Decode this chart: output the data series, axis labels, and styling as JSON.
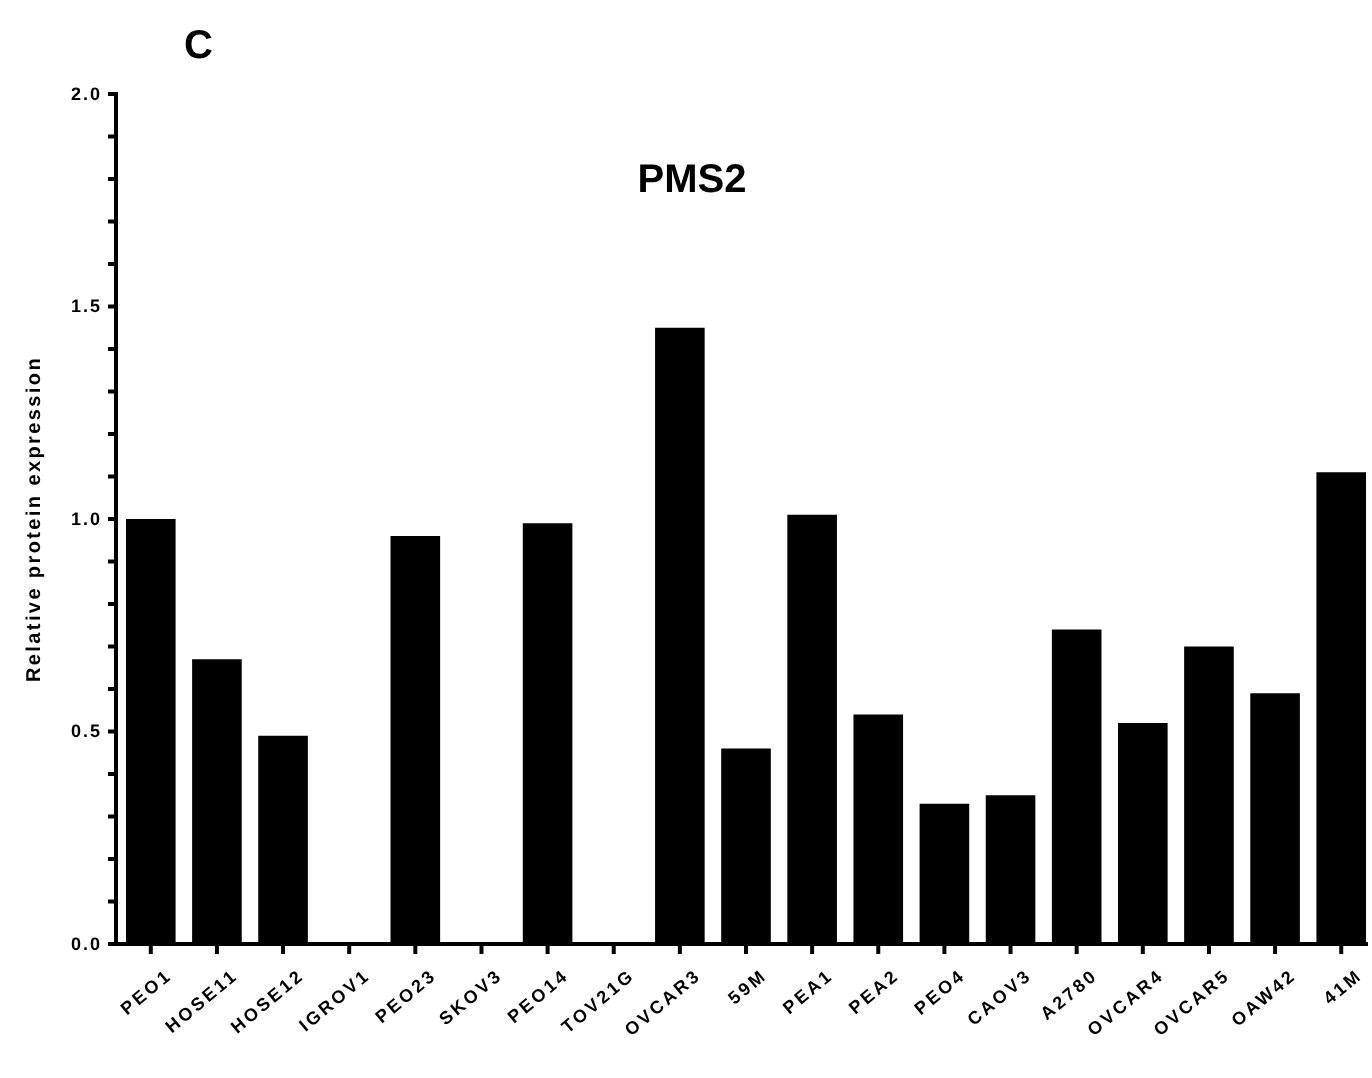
{
  "chart_data": {
    "type": "bar",
    "title": "PMS2",
    "ylabel": "Relative protein expression",
    "annotations": [
      "C"
    ],
    "categories": [
      "PEO1",
      "HOSE11",
      "HOSE12",
      "IGROV1",
      "PEO23",
      "SKOV3",
      "PEO14",
      "TOV21G",
      "OVCAR3",
      "59M",
      "PEA1",
      "PEA2",
      "PEO4",
      "CAOV3",
      "A2780",
      "OVCAR4",
      "OVCAR5",
      "OAW42",
      "41M"
    ],
    "values": [
      1.0,
      0.67,
      0.49,
      0,
      0.96,
      0,
      0.99,
      0,
      1.45,
      0.46,
      1.01,
      0.54,
      0.33,
      0.35,
      0.74,
      0.52,
      0.7,
      0.59,
      1.11
    ],
    "color": "#000000",
    "ylim": [
      0,
      2
    ],
    "yticks": [
      {
        "value": 0,
        "label": "0.0"
      },
      {
        "value": 0.1,
        "label": null
      },
      {
        "value": 0.2,
        "label": null
      },
      {
        "value": 0.3,
        "label": null
      },
      {
        "value": 0.4,
        "label": null
      },
      {
        "value": 0.5,
        "label": "0.5"
      },
      {
        "value": 0.6,
        "label": null
      },
      {
        "value": 0.7,
        "label": null
      },
      {
        "value": 0.8,
        "label": null
      },
      {
        "value": 0.9,
        "label": null
      },
      {
        "value": 1,
        "label": "1.0"
      },
      {
        "value": 1.1,
        "label": null
      },
      {
        "value": 1.2,
        "label": null
      },
      {
        "value": 1.3,
        "label": null
      },
      {
        "value": 1.4,
        "label": null
      },
      {
        "value": 1.5,
        "label": "1.5"
      },
      {
        "value": 1.6,
        "label": null
      },
      {
        "value": 1.7,
        "label": null
      },
      {
        "value": 1.8,
        "label": null
      },
      {
        "value": 1.9,
        "label": null
      },
      {
        "value": 2,
        "label": "2.0"
      }
    ],
    "grid": false
  }
}
